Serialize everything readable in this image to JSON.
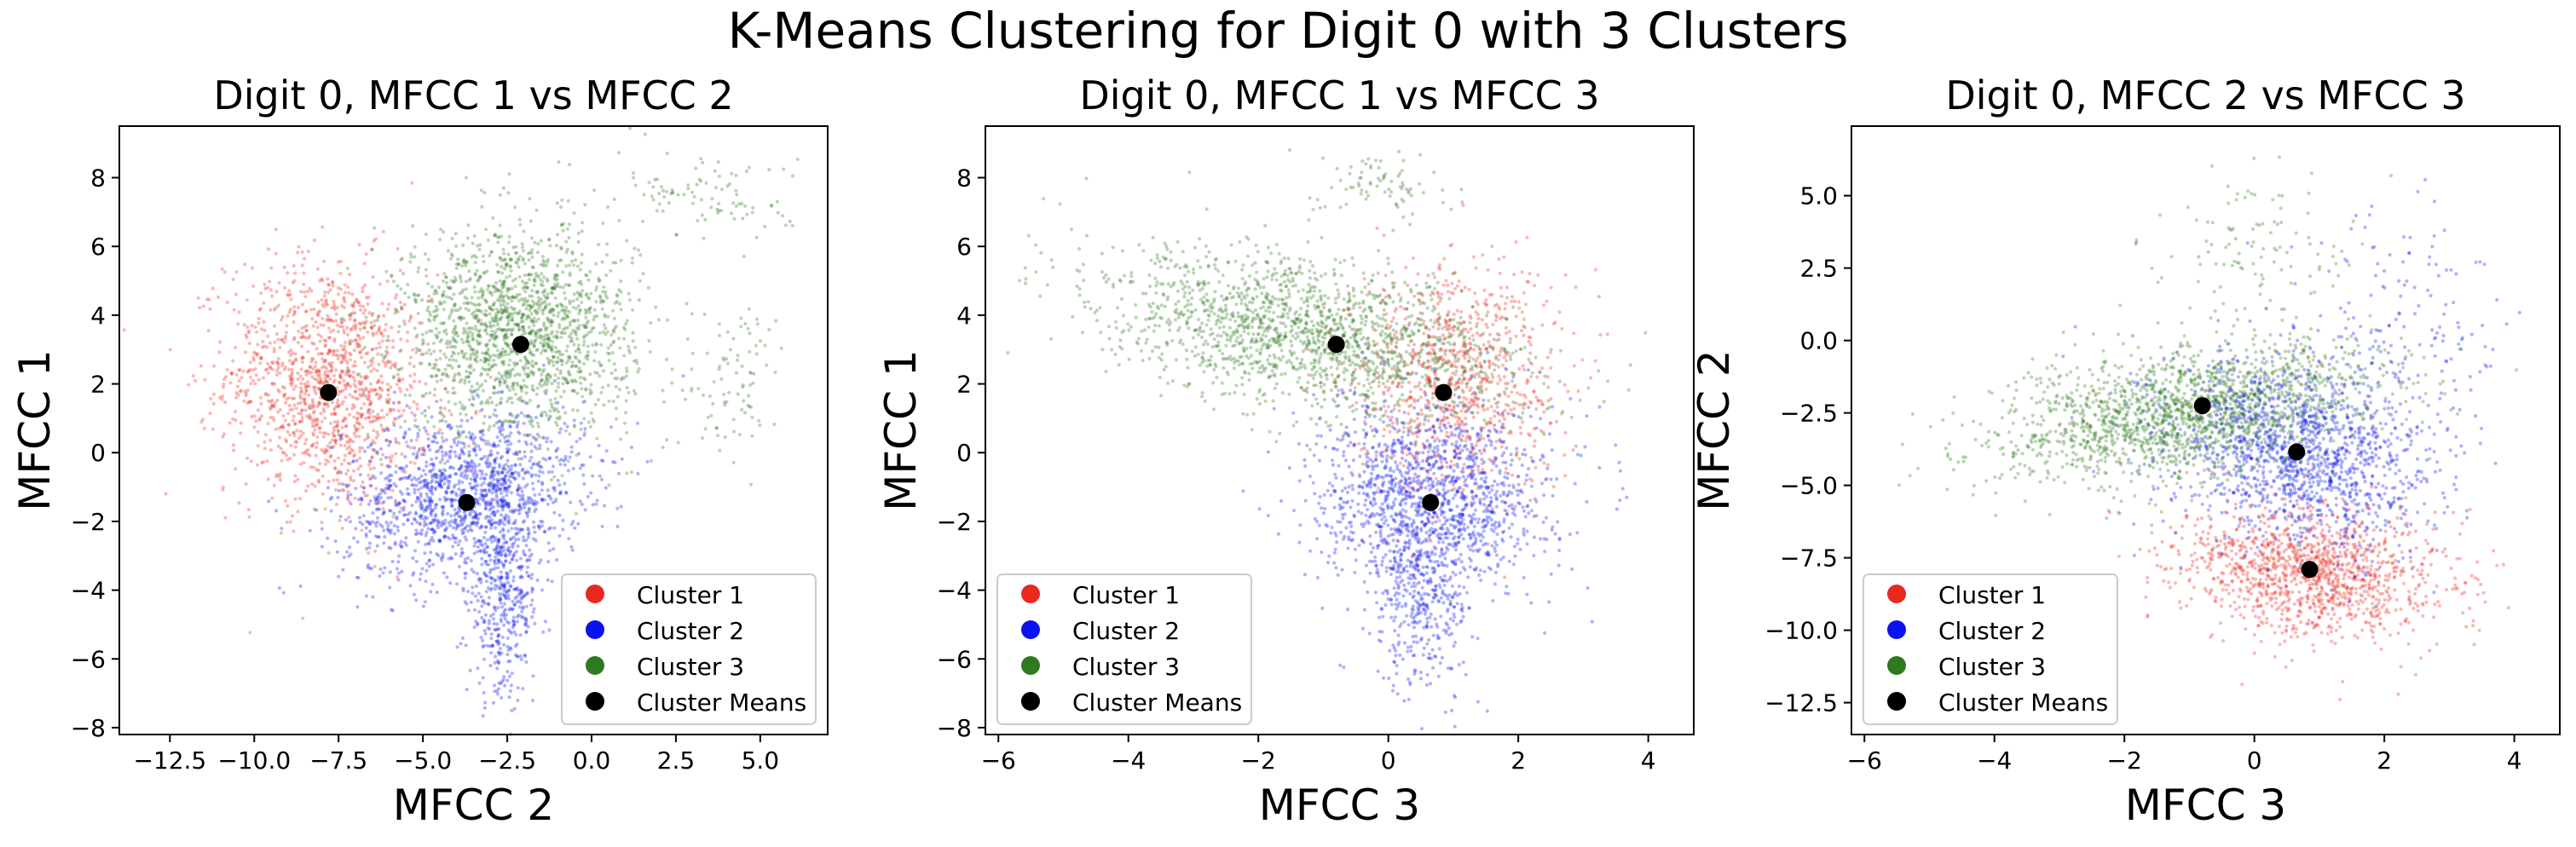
{
  "figure": {
    "suptitle": "K-Means Clustering for Digit 0 with 3 Clusters"
  },
  "colors": {
    "cluster_1": "#e8291e",
    "cluster_2": "#0a12ee",
    "cluster_3": "#2e7a1f",
    "means": "#000000"
  },
  "chart_data": [
    {
      "type": "scatter",
      "title": "Digit 0, MFCC 1 vs MFCC 2",
      "xlabel": "MFCC 2",
      "ylabel": "MFCC 1",
      "xlim": [
        -14,
        7
      ],
      "ylim": [
        -8.2,
        9.5
      ],
      "xticks": [
        -12.5,
        -10.0,
        -7.5,
        -5.0,
        -2.5,
        0.0,
        2.5,
        5.0
      ],
      "xtick_labels": [
        "−12.5",
        "−10.0",
        "−7.5",
        "−5.0",
        "−2.5",
        "0.0",
        "2.5",
        "5.0"
      ],
      "yticks": [
        -8,
        -6,
        -4,
        -2,
        0,
        2,
        4,
        6,
        8
      ],
      "ytick_labels": [
        "−8",
        "−6",
        "−4",
        "−2",
        "0",
        "2",
        "4",
        "6",
        "8"
      ],
      "legend_position": "lower-right",
      "series": [
        {
          "name": "Cluster 1",
          "kind": "cloud",
          "color_key": "cluster_1",
          "blobs": [
            {
              "cx": -7.8,
              "cy": 2.0,
              "sx": 1.5,
              "sy": 1.8,
              "rho": -0.1,
              "n": 1300
            }
          ]
        },
        {
          "name": "Cluster 2",
          "kind": "cloud",
          "color_key": "cluster_2",
          "blobs": [
            {
              "cx": -3.8,
              "cy": -1.2,
              "sx": 1.8,
              "sy": 1.2,
              "rho": 0.2,
              "n": 1300
            },
            {
              "cx": -2.6,
              "cy": -4.0,
              "sx": 0.55,
              "sy": 1.6,
              "rho": 0.0,
              "n": 500
            }
          ]
        },
        {
          "name": "Cluster 3",
          "kind": "cloud",
          "color_key": "cluster_3",
          "blobs": [
            {
              "cx": -2.2,
              "cy": 3.5,
              "sx": 1.7,
              "sy": 1.5,
              "rho": 0.0,
              "n": 1700
            },
            {
              "cx": 3.5,
              "cy": 7.5,
              "sx": 1.3,
              "sy": 0.7,
              "rho": -0.3,
              "n": 100
            },
            {
              "cx": 4.3,
              "cy": 2.0,
              "sx": 0.8,
              "sy": 1.4,
              "rho": 0.3,
              "n": 90
            }
          ]
        },
        {
          "name": "Cluster Means",
          "kind": "means",
          "color_key": "means",
          "points": [
            [
              -7.8,
              1.75
            ],
            [
              -3.7,
              -1.45
            ],
            [
              -2.1,
              3.15
            ]
          ]
        }
      ]
    },
    {
      "type": "scatter",
      "title": "Digit 0, MFCC 1 vs MFCC 3",
      "xlabel": "MFCC 3",
      "ylabel": "MFCC 1",
      "xlim": [
        -6.2,
        4.7
      ],
      "ylim": [
        -8.2,
        9.5
      ],
      "xticks": [
        -6,
        -4,
        -2,
        0,
        2,
        4
      ],
      "xtick_labels": [
        "−6",
        "−4",
        "−2",
        "0",
        "2",
        "4"
      ],
      "yticks": [
        -8,
        -6,
        -4,
        -2,
        0,
        2,
        4,
        6,
        8
      ],
      "ytick_labels": [
        "−8",
        "−6",
        "−4",
        "−2",
        "0",
        "2",
        "4",
        "6",
        "8"
      ],
      "legend_position": "lower-left",
      "series": [
        {
          "name": "Cluster 1",
          "kind": "cloud",
          "color_key": "cluster_1",
          "blobs": [
            {
              "cx": 1.0,
              "cy": 2.2,
              "sx": 0.8,
              "sy": 1.7,
              "rho": 0.0,
              "n": 900
            }
          ]
        },
        {
          "name": "Cluster 2",
          "kind": "cloud",
          "color_key": "cluster_2",
          "blobs": [
            {
              "cx": 0.7,
              "cy": -1.2,
              "sx": 0.9,
              "sy": 1.3,
              "rho": 0.0,
              "n": 1300
            },
            {
              "cx": 0.55,
              "cy": -4.0,
              "sx": 0.4,
              "sy": 1.4,
              "rho": 0.0,
              "n": 450
            }
          ]
        },
        {
          "name": "Cluster 3",
          "kind": "cloud",
          "color_key": "cluster_3",
          "blobs": [
            {
              "cx": -1.2,
              "cy": 3.4,
              "sx": 1.6,
              "sy": 1.2,
              "rho": -0.45,
              "n": 1700
            },
            {
              "cx": -0.1,
              "cy": 7.8,
              "sx": 0.5,
              "sy": 0.5,
              "rho": 0.0,
              "n": 80
            }
          ]
        },
        {
          "name": "Cluster Means",
          "kind": "means",
          "color_key": "means",
          "points": [
            [
              -0.8,
              3.15
            ],
            [
              0.85,
              1.75
            ],
            [
              0.65,
              -1.45
            ]
          ]
        }
      ]
    },
    {
      "type": "scatter",
      "title": "Digit 0, MFCC 2 vs MFCC 3",
      "xlabel": "MFCC 3",
      "ylabel": "MFCC 2",
      "xlim": [
        -6.2,
        4.7
      ],
      "ylim": [
        -13.6,
        7.4
      ],
      "xticks": [
        -6,
        -4,
        -2,
        0,
        2,
        4
      ],
      "xtick_labels": [
        "−6",
        "−4",
        "−2",
        "0",
        "2",
        "4"
      ],
      "yticks": [
        -12.5,
        -10.0,
        -7.5,
        -5.0,
        -2.5,
        0.0,
        2.5,
        5.0
      ],
      "ytick_labels": [
        "−12.5",
        "−10.0",
        "−7.5",
        "−5.0",
        "−2.5",
        "0.0",
        "2.5",
        "5.0"
      ],
      "legend_position": "lower-left",
      "series": [
        {
          "name": "Cluster 1",
          "kind": "cloud",
          "color_key": "cluster_1",
          "blobs": [
            {
              "cx": 0.9,
              "cy": -8.0,
              "sx": 1.0,
              "sy": 1.1,
              "rho": -0.15,
              "n": 1300
            }
          ]
        },
        {
          "name": "Cluster 2",
          "kind": "cloud",
          "color_key": "cluster_2",
          "blobs": [
            {
              "cx": 0.7,
              "cy": -3.9,
              "sx": 1.0,
              "sy": 1.6,
              "rho": -0.2,
              "n": 1500
            },
            {
              "cx": 2.2,
              "cy": 0.5,
              "sx": 0.9,
              "sy": 2.0,
              "rho": 0.0,
              "n": 150
            }
          ]
        },
        {
          "name": "Cluster 3",
          "kind": "cloud",
          "color_key": "cluster_3",
          "blobs": [
            {
              "cx": -1.0,
              "cy": -2.5,
              "sx": 1.5,
              "sy": 1.2,
              "rho": 0.45,
              "n": 1800
            },
            {
              "cx": 0.0,
              "cy": 3.0,
              "sx": 0.8,
              "sy": 1.6,
              "rho": 0.0,
              "n": 120
            }
          ]
        },
        {
          "name": "Cluster Means",
          "kind": "means",
          "color_key": "means",
          "points": [
            [
              -0.8,
              -2.25
            ],
            [
              0.65,
              -3.85
            ],
            [
              0.85,
              -7.9
            ]
          ]
        }
      ]
    }
  ]
}
